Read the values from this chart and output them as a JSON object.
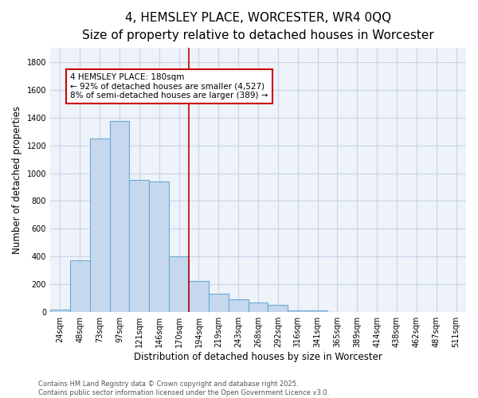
{
  "title": "4, HEMSLEY PLACE, WORCESTER, WR4 0QQ",
  "subtitle": "Size of property relative to detached houses in Worcester",
  "xlabel": "Distribution of detached houses by size in Worcester",
  "ylabel": "Number of detached properties",
  "categories": [
    "24sqm",
    "48sqm",
    "73sqm",
    "97sqm",
    "121sqm",
    "146sqm",
    "170sqm",
    "194sqm",
    "219sqm",
    "243sqm",
    "268sqm",
    "292sqm",
    "316sqm",
    "341sqm",
    "365sqm",
    "389sqm",
    "414sqm",
    "438sqm",
    "462sqm",
    "487sqm",
    "511sqm"
  ],
  "values": [
    20,
    375,
    1250,
    1375,
    950,
    940,
    400,
    225,
    130,
    90,
    70,
    55,
    15,
    15,
    0,
    0,
    0,
    0,
    0,
    0,
    0
  ],
  "bar_color": "#c5d8ee",
  "bar_edge_color": "#6aaad4",
  "vline_color": "#bb0000",
  "annotation_text": "4 HEMSLEY PLACE: 180sqm\n← 92% of detached houses are smaller (4,527)\n8% of semi-detached houses are larger (389) →",
  "annotation_box_color": "#cc0000",
  "ylim": [
    0,
    1900
  ],
  "yticks": [
    0,
    200,
    400,
    600,
    800,
    1000,
    1200,
    1400,
    1600,
    1800
  ],
  "background_color": "#eef2f9",
  "grid_color": "#c8d4e8",
  "footer": "Contains HM Land Registry data © Crown copyright and database right 2025.\nContains public sector information licensed under the Open Government Licence v3.0.",
  "title_fontsize": 11,
  "subtitle_fontsize": 9.5,
  "xlabel_fontsize": 8.5,
  "ylabel_fontsize": 8.5,
  "tick_fontsize": 7,
  "annotation_fontsize": 7.5,
  "footer_fontsize": 6
}
